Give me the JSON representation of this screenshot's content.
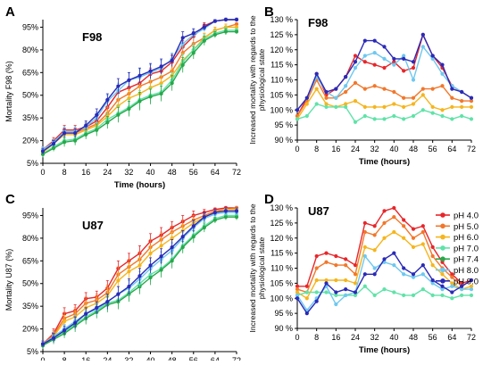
{
  "colors": {
    "pH 4.0": "#e8262a",
    "pH 5.0": "#f2772a",
    "pH 6.0": "#f6b51c",
    "pH 7.0": "#5fe3a8",
    "pH 7.4": "#28a84a",
    "pH 8.0": "#6ec8f0",
    "pH 9.0": "#2a2ab8"
  },
  "legend": {
    "placement": "panel-D-upper-right",
    "items": [
      "pH 4.0",
      "pH 5.0",
      "pH 6.0",
      "pH 7.0",
      "pH 7.4",
      "pH 8.0",
      "pH 9.0"
    ]
  },
  "chart_data": [
    {
      "panel": "A",
      "type": "line",
      "title": "F98",
      "xlabel": "Time (hours)",
      "ylabel": "Mortality F98 (%)",
      "xlim": [
        0,
        72
      ],
      "ylim": [
        5,
        100
      ],
      "xticks": [
        0,
        8,
        16,
        24,
        32,
        40,
        48,
        56,
        64,
        72
      ],
      "yticks": [
        5,
        20,
        35,
        50,
        65,
        80,
        95
      ],
      "ytick_suffix": "%",
      "grid": false,
      "error_bars": true,
      "x": [
        0,
        4,
        8,
        12,
        16,
        20,
        24,
        28,
        32,
        36,
        40,
        44,
        48,
        52,
        56,
        60,
        64,
        68,
        72
      ],
      "series": [
        {
          "name": "pH 4.0",
          "values": [
            14,
            20,
            27,
            27,
            29,
            33,
            42,
            52,
            55,
            58,
            64,
            66,
            72,
            82,
            89,
            96,
            99,
            100,
            100
          ],
          "err": [
            2,
            2,
            3,
            3,
            3,
            3,
            4,
            4,
            4,
            5,
            4,
            4,
            4,
            4,
            3,
            2,
            1,
            1,
            1
          ]
        },
        {
          "name": "pH 5.0",
          "values": [
            13,
            19,
            25,
            25,
            28,
            31,
            38,
            47,
            51,
            56,
            59,
            62,
            66,
            78,
            84,
            88,
            93,
            95,
            97
          ],
          "err": [
            2,
            2,
            3,
            3,
            3,
            4,
            4,
            5,
            5,
            5,
            5,
            5,
            5,
            4,
            4,
            3,
            2,
            2,
            1
          ]
        },
        {
          "name": "pH 6.0",
          "values": [
            12,
            18,
            24,
            24,
            27,
            30,
            36,
            43,
            48,
            51,
            55,
            58,
            63,
            73,
            80,
            88,
            93,
            95,
            95
          ],
          "err": [
            2,
            2,
            3,
            3,
            3,
            4,
            4,
            5,
            5,
            5,
            5,
            5,
            5,
            5,
            4,
            3,
            2,
            2,
            1
          ]
        },
        {
          "name": "pH 7.0",
          "values": [
            11,
            16,
            20,
            21,
            25,
            28,
            34,
            38,
            42,
            47,
            50,
            52,
            60,
            72,
            80,
            87,
            91,
            93,
            93
          ],
          "err": [
            2,
            2,
            3,
            3,
            3,
            4,
            4,
            5,
            5,
            6,
            5,
            5,
            5,
            5,
            4,
            3,
            2,
            2,
            1
          ]
        },
        {
          "name": "pH 7.4",
          "values": [
            11,
            15,
            19,
            20,
            24,
            27,
            32,
            37,
            41,
            46,
            49,
            51,
            58,
            70,
            78,
            86,
            90,
            92,
            92
          ],
          "err": [
            2,
            2,
            3,
            3,
            3,
            4,
            4,
            5,
            5,
            6,
            5,
            5,
            5,
            5,
            4,
            3,
            2,
            2,
            1
          ]
        },
        {
          "name": "pH 8.0",
          "values": [
            14,
            19,
            26,
            26,
            29,
            35,
            46,
            53,
            60,
            62,
            65,
            68,
            74,
            84,
            90,
            94,
            99,
            100,
            100
          ],
          "err": [
            2,
            2,
            3,
            3,
            3,
            4,
            4,
            5,
            5,
            5,
            5,
            5,
            4,
            4,
            3,
            2,
            1,
            1,
            1
          ]
        },
        {
          "name": "pH 9.0",
          "values": [
            13,
            18,
            25,
            25,
            30,
            37,
            47,
            56,
            60,
            63,
            66,
            69,
            73,
            88,
            91,
            95,
            99,
            100,
            100
          ],
          "err": [
            2,
            2,
            3,
            3,
            3,
            4,
            4,
            5,
            5,
            5,
            5,
            5,
            4,
            4,
            3,
            2,
            1,
            1,
            1
          ]
        }
      ]
    },
    {
      "panel": "B",
      "type": "line",
      "title": "F98",
      "xlabel": "Time (hours)",
      "ylabel_lines": [
        "Increased mortality with regards to the",
        "physiological state"
      ],
      "xlim": [
        0,
        72
      ],
      "ylim": [
        90,
        130
      ],
      "xticks": [
        0,
        8,
        16,
        24,
        32,
        40,
        48,
        56,
        64,
        72
      ],
      "yticks": [
        90,
        95,
        100,
        105,
        110,
        115,
        120,
        125,
        130
      ],
      "ytick_suffix": " %",
      "grid": false,
      "x": [
        0,
        4,
        8,
        12,
        16,
        20,
        24,
        28,
        32,
        36,
        40,
        44,
        48,
        52,
        56,
        60,
        64,
        68,
        72
      ],
      "series": [
        {
          "name": "pH 4.0",
          "values": [
            98,
            104,
            112,
            105,
            107,
            111,
            118,
            116,
            115,
            114,
            116,
            113,
            114,
            125,
            118,
            114,
            108,
            106,
            104
          ]
        },
        {
          "name": "pH 5.0",
          "values": [
            98,
            103,
            110,
            104,
            104,
            106,
            109,
            107,
            108,
            107,
            106,
            104,
            104,
            107,
            107,
            108,
            104,
            103,
            103
          ]
        },
        {
          "name": "pH 6.0",
          "values": [
            97,
            102,
            107,
            102,
            101,
            102,
            103,
            101,
            101,
            101,
            102,
            101,
            102,
            105,
            101,
            100,
            101,
            101,
            101
          ]
        },
        {
          "name": "pH 7.0",
          "values": [
            97,
            98,
            102,
            101,
            101,
            101,
            96,
            98,
            97,
            97,
            98,
            97,
            98,
            100,
            99,
            98,
            97,
            98,
            97
          ]
        },
        {
          "name": "pH 8.0",
          "values": [
            100,
            104,
            111,
            106,
            104,
            108,
            114,
            118,
            119,
            117,
            115,
            118,
            110,
            121,
            117,
            112,
            108,
            106,
            104
          ]
        },
        {
          "name": "pH 9.0",
          "values": [
            100,
            104,
            112,
            106,
            107,
            111,
            116,
            123,
            123,
            121,
            117,
            117,
            116,
            125,
            118,
            115,
            107,
            106,
            104
          ]
        }
      ]
    },
    {
      "panel": "C",
      "type": "line",
      "title": "U87",
      "xlabel": "Time (hours)",
      "ylabel": "Mortality U87 (%)",
      "xlim": [
        0,
        72
      ],
      "ylim": [
        5,
        100
      ],
      "xticks": [
        0,
        8,
        16,
        24,
        32,
        40,
        48,
        56,
        64,
        72
      ],
      "yticks": [
        5,
        20,
        35,
        50,
        65,
        80,
        95
      ],
      "ytick_suffix": "%",
      "grid": false,
      "error_bars": true,
      "x": [
        0,
        4,
        8,
        12,
        16,
        20,
        24,
        28,
        32,
        36,
        40,
        44,
        48,
        52,
        56,
        60,
        64,
        68,
        72
      ],
      "series": [
        {
          "name": "pH 4.0",
          "values": [
            10,
            17,
            30,
            32,
            40,
            41,
            47,
            60,
            65,
            70,
            78,
            82,
            87,
            91,
            95,
            97,
            99,
            100,
            100
          ],
          "err": [
            2,
            3,
            4,
            4,
            4,
            4,
            5,
            5,
            5,
            5,
            5,
            5,
            4,
            4,
            3,
            2,
            1,
            1,
            1
          ]
        },
        {
          "name": "pH 5.0",
          "values": [
            10,
            16,
            27,
            30,
            37,
            39,
            44,
            56,
            61,
            66,
            74,
            79,
            84,
            88,
            92,
            95,
            98,
            99,
            100
          ],
          "err": [
            2,
            3,
            4,
            4,
            4,
            4,
            5,
            5,
            5,
            5,
            5,
            5,
            4,
            4,
            3,
            2,
            1,
            1,
            1
          ]
        },
        {
          "name": "pH 6.0",
          "values": [
            9,
            15,
            25,
            28,
            34,
            37,
            42,
            52,
            58,
            62,
            70,
            75,
            80,
            85,
            90,
            94,
            97,
            99,
            99
          ],
          "err": [
            2,
            3,
            4,
            4,
            4,
            4,
            5,
            5,
            5,
            5,
            5,
            5,
            4,
            4,
            3,
            2,
            1,
            1,
            1
          ]
        },
        {
          "name": "pH 7.0",
          "values": [
            9,
            14,
            18,
            23,
            28,
            32,
            37,
            39,
            44,
            50,
            56,
            60,
            66,
            75,
            82,
            88,
            93,
            95,
            95
          ],
          "err": [
            2,
            3,
            3,
            4,
            4,
            4,
            5,
            5,
            5,
            5,
            5,
            5,
            5,
            4,
            4,
            3,
            2,
            2,
            2
          ]
        },
        {
          "name": "pH 7.4",
          "values": [
            9,
            13,
            17,
            22,
            27,
            31,
            36,
            38,
            43,
            48,
            54,
            59,
            65,
            74,
            81,
            87,
            92,
            94,
            94
          ],
          "err": [
            2,
            3,
            3,
            4,
            4,
            4,
            5,
            5,
            5,
            5,
            5,
            5,
            5,
            4,
            4,
            3,
            2,
            2,
            2
          ]
        },
        {
          "name": "pH 8.0",
          "values": [
            10,
            15,
            20,
            25,
            30,
            33,
            38,
            43,
            47,
            53,
            60,
            66,
            72,
            80,
            87,
            93,
            96,
            97,
            97
          ],
          "err": [
            2,
            3,
            3,
            4,
            4,
            4,
            5,
            5,
            5,
            5,
            5,
            5,
            5,
            4,
            4,
            3,
            2,
            2,
            2
          ]
        },
        {
          "name": "pH 9.0",
          "values": [
            10,
            14,
            19,
            24,
            30,
            34,
            38,
            43,
            48,
            55,
            62,
            68,
            74,
            81,
            88,
            94,
            97,
            98,
            98
          ],
          "err": [
            2,
            3,
            3,
            4,
            4,
            4,
            5,
            5,
            5,
            5,
            5,
            5,
            5,
            4,
            4,
            3,
            2,
            2,
            2
          ]
        }
      ]
    },
    {
      "panel": "D",
      "type": "line",
      "title": "U87",
      "xlabel": "Time (hours)",
      "ylabel_lines": [
        "Increased mortality with regards to the",
        "physiological state"
      ],
      "xlim": [
        0,
        72
      ],
      "ylim": [
        90,
        130
      ],
      "xticks": [
        0,
        8,
        16,
        24,
        32,
        40,
        48,
        56,
        64,
        72
      ],
      "yticks": [
        90,
        95,
        100,
        105,
        110,
        115,
        120,
        125,
        130
      ],
      "ytick_suffix": " %",
      "grid": false,
      "x": [
        0,
        4,
        8,
        12,
        16,
        20,
        24,
        28,
        32,
        36,
        40,
        44,
        48,
        52,
        56,
        60,
        64,
        68,
        72
      ],
      "series": [
        {
          "name": "pH 4.0",
          "values": [
            104,
            104,
            114,
            115,
            114,
            113,
            111,
            125,
            124,
            129,
            130,
            126,
            123,
            124,
            117,
            112,
            108,
            105,
            106
          ]
        },
        {
          "name": "pH 5.0",
          "values": [
            103,
            102,
            110,
            112,
            111,
            111,
            108,
            122,
            121,
            125,
            127,
            124,
            120,
            122,
            114,
            110,
            107,
            104,
            106
          ]
        },
        {
          "name": "pH 6.0",
          "values": [
            102,
            100,
            106,
            106,
            106,
            106,
            105,
            117,
            116,
            120,
            122,
            120,
            117,
            118,
            111,
            108,
            105,
            103,
            104
          ]
        },
        {
          "name": "pH 7.0",
          "values": [
            101,
            102,
            102,
            102,
            101,
            101,
            101,
            104,
            101,
            103,
            102,
            101,
            101,
            103,
            101,
            101,
            100,
            101,
            101
          ]
        },
        {
          "name": "pH 8.0",
          "values": [
            101,
            96,
            100,
            104,
            98,
            101,
            102,
            114,
            110,
            112,
            111,
            108,
            107,
            108,
            105,
            103,
            104,
            103,
            103
          ]
        },
        {
          "name": "pH 9.0",
          "values": [
            100,
            95,
            99,
            105,
            102,
            103,
            102,
            108,
            108,
            113,
            115,
            110,
            108,
            111,
            106,
            104,
            102,
            104,
            106
          ]
        }
      ]
    }
  ]
}
